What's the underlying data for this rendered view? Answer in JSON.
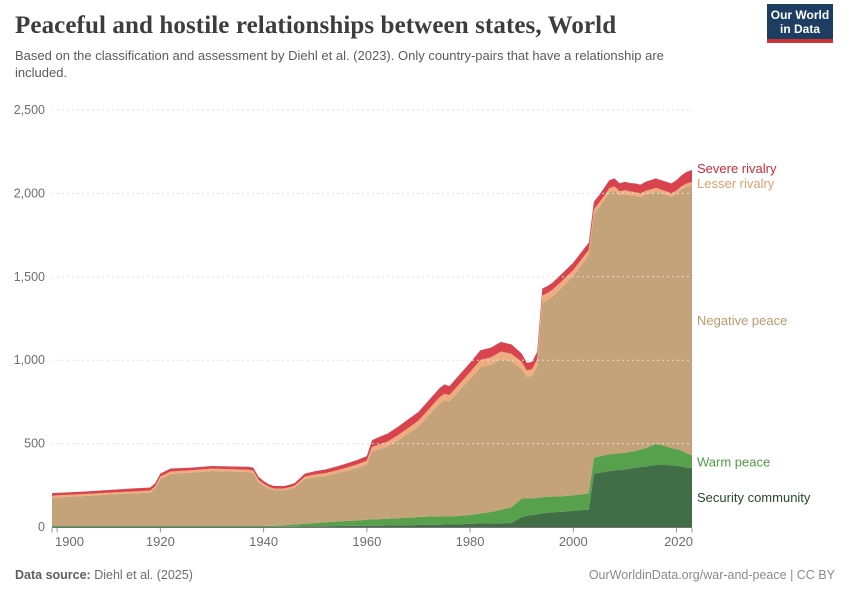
{
  "header": {
    "title": "Peaceful and hostile relationships between states, World",
    "subtitle": "Based on the classification and assessment by Diehl et al. (2023). Only country-pairs that have a relationship are included.",
    "logo": {
      "line1": "Our World",
      "line2": "in Data",
      "bg": "#1D3D63",
      "accent": "#CE3235"
    }
  },
  "footer": {
    "source_label": "Data source:",
    "source_value": " Diehl et al. (2025)",
    "credit": "OurWorldinData.org/war-and-peace | CC BY"
  },
  "colors": {
    "axis_text": "#6e6e6e",
    "gridline": "#e2e2e2",
    "baseline": "#757575",
    "tick": "#999999"
  },
  "chart_data": {
    "type": "area",
    "stacked": true,
    "title": "Peaceful and hostile relationships between states, World",
    "xlabel": "",
    "ylabel": "",
    "grid": "dashed-horizontal",
    "legend_position": "right-of-plot",
    "ylim": [
      0,
      2500
    ],
    "yticks": [
      0,
      500,
      1000,
      1500,
      2000,
      2500
    ],
    "ytick_labels": [
      "0",
      "500",
      "1,000",
      "1,500",
      "2,000",
      "2,500"
    ],
    "xticks": [
      1900,
      1920,
      1940,
      1960,
      1980,
      2000,
      2020
    ],
    "x": [
      1899,
      1905,
      1910,
      1914,
      1918,
      1919,
      1920,
      1922,
      1926,
      1930,
      1934,
      1937,
      1938,
      1939,
      1940,
      1941,
      1942,
      1944,
      1945,
      1946,
      1948,
      1950,
      1952,
      1955,
      1958,
      1960,
      1961,
      1962,
      1964,
      1966,
      1968,
      1970,
      1972,
      1974,
      1975,
      1976,
      1978,
      1980,
      1982,
      1984,
      1986,
      1988,
      1990,
      1991,
      1992,
      1993,
      1994,
      1995,
      1996,
      1998,
      2000,
      2001,
      2002,
      2003,
      2004,
      2005,
      2006,
      2007,
      2008,
      2009,
      2010,
      2011,
      2012,
      2013,
      2014,
      2015,
      2016,
      2017,
      2018,
      2019,
      2020,
      2021,
      2022,
      2023
    ],
    "series": [
      {
        "name": "Security community",
        "color": "#426E47",
        "label_color": "#27492C",
        "values": [
          0,
          0,
          0,
          0,
          0,
          0,
          0,
          0,
          0,
          0,
          0,
          0,
          0,
          0,
          0,
          0,
          0,
          1,
          2,
          2,
          3,
          4,
          5,
          6,
          7,
          8,
          8,
          8,
          9,
          10,
          11,
          12,
          13,
          14,
          15,
          15,
          17,
          20,
          21,
          22,
          23,
          24,
          60,
          68,
          72,
          76,
          82,
          86,
          88,
          92,
          98,
          100,
          102,
          104,
          320,
          325,
          330,
          335,
          340,
          342,
          345,
          350,
          355,
          360,
          362,
          368,
          372,
          372,
          372,
          370,
          368,
          362,
          356,
          352
        ]
      },
      {
        "name": "Warm peace",
        "color": "#58A14C",
        "label_color": "#4F9A45",
        "values": [
          6,
          6,
          6,
          6,
          6,
          6,
          6,
          6,
          6,
          6,
          6,
          6,
          6,
          6,
          6,
          7,
          8,
          10,
          11,
          13,
          16,
          20,
          24,
          28,
          32,
          36,
          38,
          39,
          41,
          43,
          45,
          48,
          50,
          50,
          48,
          48,
          50,
          52,
          60,
          68,
          80,
          95,
          110,
          105,
          100,
          98,
          96,
          95,
          94,
          92,
          92,
          94,
          96,
          98,
          96,
          98,
          100,
          100,
          100,
          100,
          100,
          100,
          100,
          105,
          110,
          118,
          125,
          120,
          112,
          102,
          100,
          95,
          85,
          78
        ]
      },
      {
        "name": "Negative peace",
        "color": "#C4A27A",
        "label_color": "#BA9A6F",
        "values": [
          170,
          179,
          188,
          194,
          200,
          224,
          282,
          312,
          320,
          330,
          326,
          323,
          318,
          264,
          242,
          223,
          213,
          210,
          214,
          220,
          269,
          275,
          277,
          294,
          315,
          331,
          408,
          416,
          432,
          465,
          504,
          543,
          607,
          673,
          698,
          690,
          753,
          815,
          877,
          883,
          904,
          875,
          778,
          726,
          734,
          790,
          1166,
          1178,
          1199,
          1257,
          1315,
          1353,
          1391,
          1429,
          1460,
          1493,
          1531,
          1571,
          1577,
          1546,
          1551,
          1539,
          1531,
          1513,
          1521,
          1516,
          1515,
          1510,
          1507,
          1508,
          1530,
          1567,
          1599,
          1618
        ]
      },
      {
        "name": "Lesser rivalry",
        "color": "#EFAD7F",
        "label_color": "#DFA06E",
        "values": [
          12,
          12,
          12,
          12,
          13,
          14,
          15,
          15,
          14,
          14,
          14,
          14,
          14,
          13,
          12,
          11,
          10,
          10,
          11,
          12,
          14,
          16,
          17,
          18,
          20,
          22,
          26,
          28,
          30,
          32,
          33,
          35,
          36,
          38,
          38,
          38,
          40,
          42,
          44,
          44,
          45,
          45,
          42,
          40,
          40,
          42,
          44,
          44,
          42,
          40,
          36,
          34,
          32,
          30,
          28,
          28,
          26,
          26,
          25,
          24,
          24,
          23,
          22,
          22,
          22,
          22,
          22,
          21,
          21,
          20,
          20,
          20,
          20,
          20
        ]
      },
      {
        "name": "Severe rivalry",
        "color": "#D8434E",
        "label_color": "#CB2A3A",
        "values": [
          15,
          15,
          16,
          18,
          18,
          18,
          18,
          18,
          16,
          16,
          17,
          18,
          18,
          18,
          16,
          15,
          15,
          15,
          15,
          16,
          18,
          20,
          22,
          24,
          26,
          28,
          40,
          44,
          48,
          50,
          52,
          52,
          54,
          55,
          56,
          54,
          55,
          56,
          58,
          58,
          58,
          56,
          50,
          46,
          44,
          44,
          42,
          42,
          42,
          44,
          44,
          44,
          44,
          44,
          46,
          46,
          48,
          48,
          48,
          48,
          50,
          50,
          52,
          52,
          55,
          56,
          56,
          57,
          58,
          60,
          62,
          66,
          70,
          72
        ]
      }
    ]
  }
}
